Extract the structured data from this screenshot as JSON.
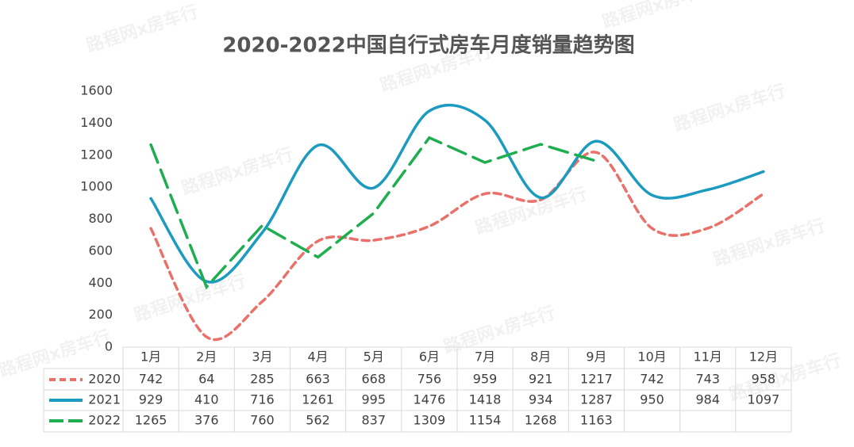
{
  "chart_data": {
    "type": "line",
    "title": "2020-2022中国自行式房车月度销量趋势图",
    "watermark": "路程网x房车行",
    "categories": [
      "1月",
      "2月",
      "3月",
      "4月",
      "5月",
      "6月",
      "7月",
      "8月",
      "9月",
      "10月",
      "11月",
      "12月"
    ],
    "series": [
      {
        "name": "2020",
        "color": "#e9716a",
        "dash": "short",
        "smooth": true,
        "values": [
          742,
          64,
          285,
          663,
          668,
          756,
          959,
          921,
          1217,
          742,
          743,
          958
        ]
      },
      {
        "name": "2021",
        "color": "#1b9bbf",
        "dash": "solid",
        "smooth": true,
        "values": [
          929,
          410,
          716,
          1261,
          995,
          1476,
          1418,
          934,
          1287,
          950,
          984,
          1097
        ]
      },
      {
        "name": "2022",
        "color": "#1fae4f",
        "dash": "long",
        "smooth": false,
        "values": [
          1265,
          376,
          760,
          562,
          837,
          1309,
          1154,
          1268,
          1163,
          null,
          null,
          null
        ]
      }
    ],
    "ylim": [
      0,
      1600
    ],
    "yticks": [
      0,
      200,
      400,
      600,
      800,
      1000,
      1200,
      1400,
      1600
    ],
    "grid": false,
    "data_table": true
  }
}
